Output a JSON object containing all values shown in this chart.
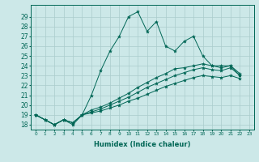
{
  "xlabel": "Humidex (Indice chaleur)",
  "background_color": "#cce8e8",
  "grid_color": "#aacccc",
  "line_color": "#006655",
  "xlim": [
    -0.5,
    23.5
  ],
  "ylim": [
    17.5,
    30.2
  ],
  "yticks": [
    18,
    19,
    20,
    21,
    22,
    23,
    24,
    25,
    26,
    27,
    28,
    29
  ],
  "xticks": [
    0,
    1,
    2,
    3,
    4,
    5,
    6,
    7,
    8,
    9,
    10,
    11,
    12,
    13,
    14,
    15,
    16,
    17,
    18,
    19,
    20,
    21,
    22,
    23
  ],
  "series": [
    [
      19.0,
      18.5,
      18.0,
      18.5,
      18.0,
      19.0,
      21.0,
      23.5,
      25.5,
      27.0,
      29.0,
      29.5,
      27.5,
      28.5,
      26.0,
      25.5,
      26.5,
      27.0,
      25.0,
      24.0,
      24.0,
      24.0,
      23.0
    ],
    [
      19.0,
      18.5,
      18.0,
      18.5,
      18.2,
      19.0,
      19.5,
      19.8,
      20.2,
      20.7,
      21.2,
      21.8,
      22.3,
      22.8,
      23.2,
      23.7,
      23.8,
      24.0,
      24.2,
      24.0,
      23.8,
      24.0,
      23.2
    ],
    [
      19.0,
      18.5,
      18.0,
      18.5,
      18.2,
      19.0,
      19.3,
      19.6,
      20.0,
      20.4,
      20.8,
      21.3,
      21.8,
      22.2,
      22.6,
      23.0,
      23.3,
      23.6,
      23.8,
      23.6,
      23.5,
      23.8,
      23.0
    ],
    [
      19.0,
      18.5,
      18.0,
      18.5,
      18.2,
      19.0,
      19.2,
      19.4,
      19.7,
      20.0,
      20.4,
      20.7,
      21.1,
      21.5,
      21.9,
      22.2,
      22.5,
      22.8,
      23.0,
      22.9,
      22.8,
      23.0,
      22.7
    ]
  ]
}
